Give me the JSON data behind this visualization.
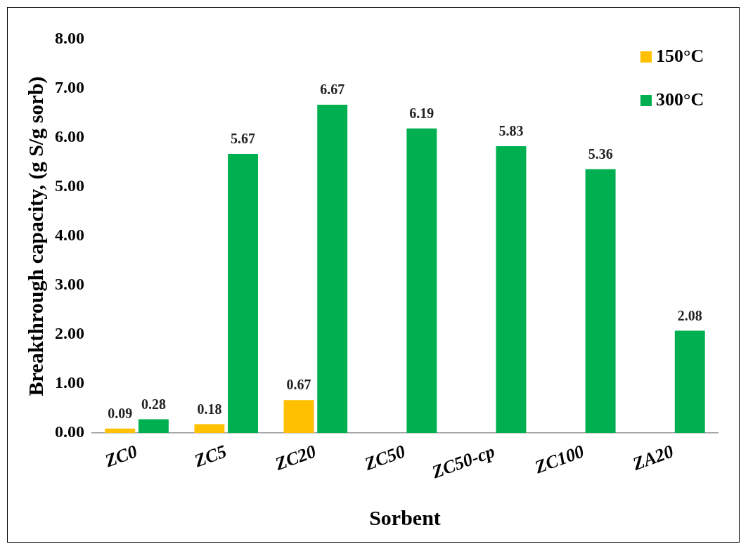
{
  "chart_data": {
    "type": "bar",
    "xlabel": "Sorbent",
    "ylabel": "Breakthrough capacity, (g S/g sorb)",
    "categories": [
      "ZC0",
      "ZC5",
      "ZC20",
      "ZC50",
      "ZC50-cp",
      "ZC100",
      "ZA20"
    ],
    "series": [
      {
        "name": "150°C",
        "color": "#ffc000",
        "values": [
          0.09,
          0.18,
          0.67,
          null,
          null,
          null,
          null
        ]
      },
      {
        "name": "300°C",
        "color": "#00b050",
        "values": [
          0.28,
          5.67,
          6.67,
          6.19,
          5.83,
          5.36,
          2.08
        ]
      }
    ],
    "ylim": [
      0,
      8
    ],
    "yticks": [
      {
        "value": 0,
        "label": "0.00"
      },
      {
        "value": 1,
        "label": "1.00"
      },
      {
        "value": 2,
        "label": "2.00"
      },
      {
        "value": 3,
        "label": "3.00"
      },
      {
        "value": 4,
        "label": "4.00"
      },
      {
        "value": 5,
        "label": "5.00"
      },
      {
        "value": 6,
        "label": "6.00"
      },
      {
        "value": 7,
        "label": "7.00"
      },
      {
        "value": 8,
        "label": "8.00"
      }
    ],
    "grid": false,
    "legend": "top right",
    "data_labels": true
  }
}
